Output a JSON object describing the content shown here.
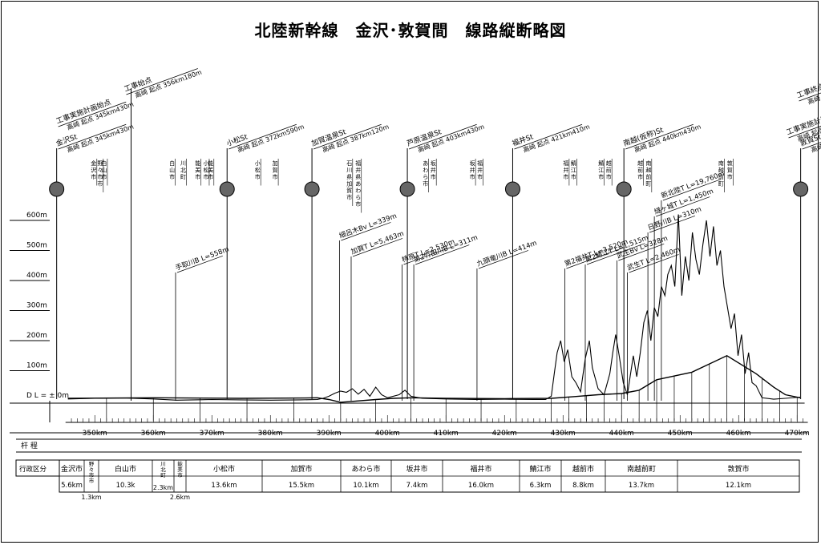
{
  "title": "北陸新幹線　金沢･敦賀間　線路縦断略図",
  "elevation_ticks": [
    {
      "label": "600m",
      "value": 600
    },
    {
      "label": "500m",
      "value": 500
    },
    {
      "label": "400m",
      "value": 400
    },
    {
      "label": "300m",
      "value": 300
    },
    {
      "label": "200m",
      "value": 200
    },
    {
      "label": "100m",
      "value": 100
    },
    {
      "label": "D L = ± 0m",
      "value": 0
    }
  ],
  "km_ticks": [
    "350km",
    "360km",
    "370km",
    "380km",
    "390km",
    "400km",
    "410km",
    "420km",
    "430km",
    "440km",
    "450km",
    "460km",
    "470km"
  ],
  "km_range": [
    345,
    471
  ],
  "row_labels": {
    "chainage": "杆 程",
    "municipality": "行政区分"
  },
  "stations": [
    {
      "name": "金沢St",
      "km": 345.4,
      "sub": "高崎 起点 345km430m"
    },
    {
      "name": "小松St",
      "km": 372.6,
      "sub": "高崎 起点 372km590m"
    },
    {
      "name": "加賀温泉St",
      "km": 387.1,
      "sub": "高崎 起点 387km120m"
    },
    {
      "name": "芦原温泉St",
      "km": 403.4,
      "sub": "高崎 起点 403km430m"
    },
    {
      "name": "福井St",
      "km": 421.4,
      "sub": "高崎 起点 421km410m"
    },
    {
      "name": "南越(仮称)St",
      "km": 440.4,
      "sub": "高崎 起点 440km430m"
    },
    {
      "name": "敦賀St",
      "km": 470.6,
      "sub": "高崎 起点 470km580m"
    }
  ],
  "start_labels": {
    "plan_start": "工事実施計画始点",
    "plan_start_sub": "高崎 起点 345km430m",
    "work_start": "工事始点",
    "work_start_sub": "高崎 起点 356km180m"
  },
  "end_labels": {
    "work_end": "工事終点",
    "work_end_sub": "高崎 起点 471km076m",
    "plan_end": "工事実施計画終点",
    "plan_end_sub": "高崎 起点 470km580m"
  },
  "municipality_tags": [
    {
      "text": "金沢市",
      "km": 349.8
    },
    {
      "text": "野々市市",
      "km": 350.9
    },
    {
      "text": "白山市",
      "km": 351.6
    },
    {
      "text": "白山市",
      "km": 363.2
    },
    {
      "text": "川北町",
      "km": 365.1
    },
    {
      "text": "能美市",
      "km": 367.6
    },
    {
      "text": "小松市",
      "km": 369.0
    },
    {
      "text": "能美市",
      "km": 369.8
    },
    {
      "text": "小松市",
      "km": 377.8
    },
    {
      "text": "加賀市",
      "km": 380.8
    },
    {
      "text": "石川県加賀市",
      "km": 393.5
    },
    {
      "text": "福井県あわら市",
      "km": 395.0
    },
    {
      "text": "あわら市",
      "km": 406.5
    },
    {
      "text": "坂井市",
      "km": 407.8
    },
    {
      "text": "坂井市",
      "km": 414.5
    },
    {
      "text": "福井市",
      "km": 415.8
    },
    {
      "text": "福井市",
      "km": 430.5
    },
    {
      "text": "鯖江市",
      "km": 431.8
    },
    {
      "text": "鯖江市",
      "km": 436.5
    },
    {
      "text": "越前市",
      "km": 437.8
    },
    {
      "text": "越前市",
      "km": 443.2
    },
    {
      "text": "南越前町",
      "km": 444.6
    },
    {
      "text": "南越前町",
      "km": 457.0
    },
    {
      "text": "敦賀市",
      "km": 458.5
    }
  ],
  "structures": [
    {
      "name": "手取川B L=558m",
      "km": 363.8
    },
    {
      "name": "細呂木Bv L=339m",
      "km": 391.8
    },
    {
      "name": "加賀T L=5,463m",
      "km": 393.8
    },
    {
      "name": "柿原T L=2,530m",
      "km": 402.5
    },
    {
      "name": "第2竹田川B L=311m",
      "km": 404.5
    },
    {
      "name": "九頭竜川B L=414m",
      "km": 415.3
    },
    {
      "name": "第2福井T L=3,520m",
      "km": 430.3
    },
    {
      "name": "第2鯖江T L=1,515m",
      "km": 433.8
    },
    {
      "name": "武生Bv L=328m",
      "km": 439.2
    },
    {
      "name": "武生T L=2,460m",
      "km": 441.0
    },
    {
      "name": "日野川B L=310m",
      "km": 444.5
    },
    {
      "name": "燧ヶ城T L=1,450m",
      "km": 445.6
    },
    {
      "name": "新北陸T L=19,760m",
      "km": 446.8
    }
  ],
  "municipality_row": [
    {
      "name": "金沢市",
      "length": "5.6km"
    },
    {
      "name": "野々市市",
      "length": "1.3km"
    },
    {
      "name": "白山市",
      "length": "10.3k"
    },
    {
      "name": "川北町",
      "length": "2.3km"
    },
    {
      "name": "能美市",
      "length": "2.6km"
    },
    {
      "name": "小松市",
      "length": "13.6km"
    },
    {
      "name": "加賀市",
      "length": "15.5km"
    },
    {
      "name": "あわら市",
      "length": "10.1km"
    },
    {
      "name": "坂井市",
      "length": "7.4km"
    },
    {
      "name": "福井市",
      "length": "16.0km"
    },
    {
      "name": "鯖江市",
      "length": "6.3km"
    },
    {
      "name": "越前市",
      "length": "8.8km"
    },
    {
      "name": "南越前町",
      "length": "13.7km"
    },
    {
      "name": "敦賀市",
      "length": "12.1km"
    }
  ]
}
